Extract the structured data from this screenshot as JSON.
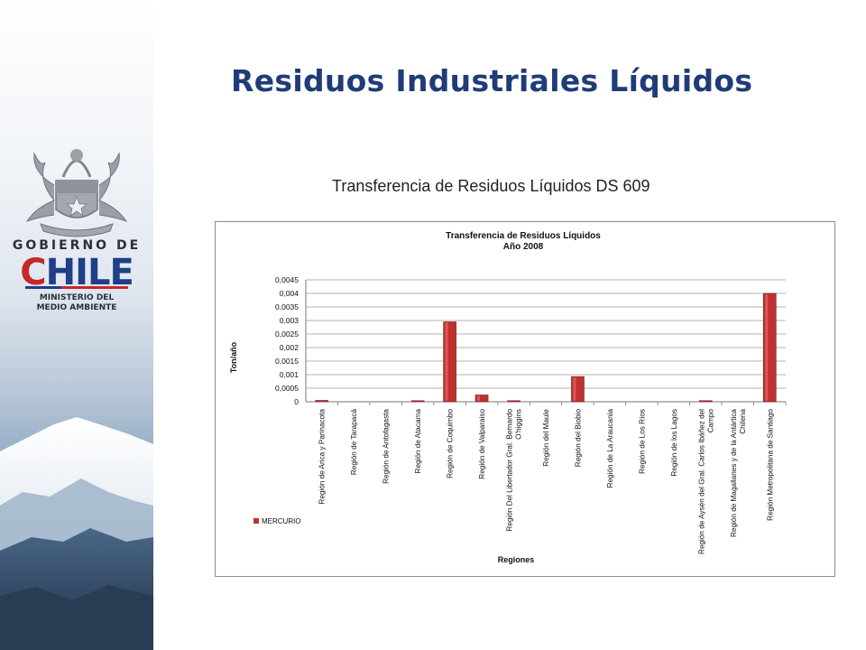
{
  "page": {
    "title": "Residuos Industriales Líquidos",
    "subtitle": "Transferencia de Residuos Líquidos DS 609"
  },
  "logo": {
    "line1": "GOBIERNO DE",
    "line2_c": "C",
    "line2_rest": "HILE",
    "line3a": "MINISTERIO DEL",
    "line3b": "MEDIO AMBIENTE",
    "icon": "chile-coat-of-arms-icon",
    "colors": {
      "blue": "#1f3f86",
      "red": "#c62828"
    }
  },
  "chart_data": {
    "type": "bar",
    "title": "Transferencia de Residuos Líquidos",
    "subtitle": "Año 2008",
    "xlabel": "Regiones",
    "ylabel": "Ton/año",
    "ylim": [
      0,
      0.0045
    ],
    "yticks": [
      "0",
      "0,0005",
      "0,001",
      "0,0015",
      "0,002",
      "0,0025",
      "0,003",
      "0,0035",
      "0,004",
      "0,0045"
    ],
    "grid": true,
    "legend_position": "bottom-left",
    "bar_color": "#c0302f",
    "categories": [
      [
        "Región de Arica y Parinacota"
      ],
      [
        "Región de Tarapacá"
      ],
      [
        "Región de Antofagasta"
      ],
      [
        "Región de Atacama"
      ],
      [
        "Región de Coquimbo"
      ],
      [
        "Región de Valparaiso"
      ],
      [
        "Región Del Libertador Gral. Bernardo",
        "O'higgins"
      ],
      [
        "Región del Maule"
      ],
      [
        "Región del Biobio"
      ],
      [
        "Región de La Araucania"
      ],
      [
        "Región de Los Ríos"
      ],
      [
        "Región de los Lagos"
      ],
      [
        "Región de Aysén del Gral. Carlos Ibáñez del",
        "Campo"
      ],
      [
        "Región de Magallanes y de la Antártica",
        "Chilena"
      ],
      [
        "Región Metropolitana de Santiago"
      ]
    ],
    "series": [
      {
        "name": "MERCURIO",
        "values": [
          5e-05,
          0,
          0,
          1e-05,
          0.00295,
          0.00025,
          8e-06,
          0,
          0.00093,
          0,
          0,
          0,
          8e-06,
          0,
          0.004
        ]
      }
    ]
  }
}
